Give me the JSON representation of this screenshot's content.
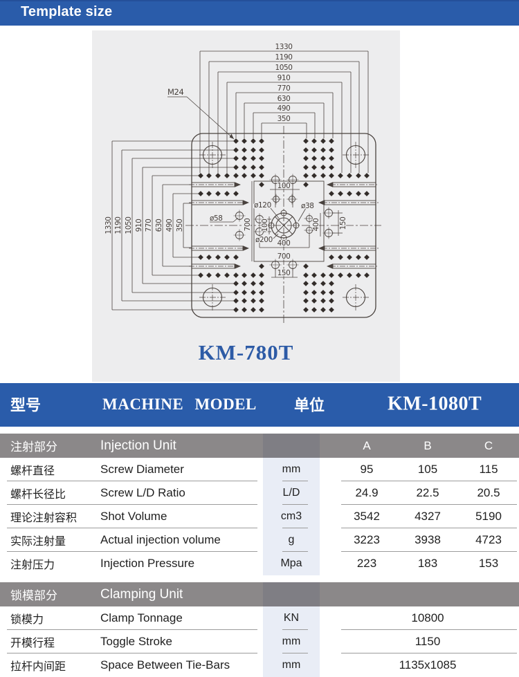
{
  "header": {
    "title": "Template size"
  },
  "diagram": {
    "model_label": "KM-780T",
    "thread_label": "M24",
    "top_dims": [
      "1330",
      "1190",
      "1050",
      "910",
      "770",
      "630",
      "490",
      "350"
    ],
    "left_dims": [
      "1330",
      "1190",
      "1050",
      "910",
      "770",
      "630",
      "490",
      "350"
    ],
    "labels": {
      "top_100": "100",
      "dia_120": "ø120",
      "dia_38": "ø38",
      "dia_58": "ø58",
      "dia_200": "ø200",
      "left_700": "700",
      "left_100": "100",
      "right_400": "400",
      "right_150": "150",
      "mid_400": "400",
      "mid_700": "700",
      "bottom_150": "150"
    }
  },
  "table": {
    "header": {
      "model_zh": "型号",
      "model_en": "MACHINE MODEL",
      "unit_zh": "单位",
      "model_value": "KM-1080T"
    },
    "sections": [
      {
        "title_zh": "注射部分",
        "title_en": "Injection Unit",
        "columns": [
          "A",
          "B",
          "C"
        ],
        "rows": [
          {
            "zh": "螺杆直径",
            "en": "Screw Diameter",
            "unit": "mm",
            "values": [
              "95",
              "105",
              "115"
            ]
          },
          {
            "zh": "螺杆长径比",
            "en": "Screw L/D Ratio",
            "unit": "L/D",
            "values": [
              "24.9",
              "22.5",
              "20.5"
            ]
          },
          {
            "zh": "理论注射容积",
            "en": "Shot Volume",
            "unit": "cm3",
            "values": [
              "3542",
              "4327",
              "5190"
            ]
          },
          {
            "zh": "实际注射量",
            "en": "Actual injection volume",
            "unit": "g",
            "values": [
              "3223",
              "3938",
              "4723"
            ]
          },
          {
            "zh": "注射压力",
            "en": "Injection Pressure",
            "unit": "Mpa",
            "values": [
              "223",
              "183",
              "153"
            ]
          }
        ]
      },
      {
        "title_zh": "锁模部分",
        "title_en": "Clamping Unit",
        "rows": [
          {
            "zh": "锁模力",
            "en": "Clamp Tonnage",
            "unit": "KN",
            "values": [
              "10800"
            ]
          },
          {
            "zh": "开模行程",
            "en": "Toggle Stroke",
            "unit": "mm",
            "values": [
              "1150"
            ]
          },
          {
            "zh": "拉杆内间距",
            "en": "Space Between Tie-Bars",
            "unit": "mm",
            "values": [
              "1135x1085"
            ]
          }
        ]
      }
    ]
  },
  "colors": {
    "accent_blue": "#2a5caa",
    "section_gray": "#8b8889",
    "unit_header_gray": "#7f7e84",
    "unit_column_bg": "#e9edf6",
    "panel_bg": "#ededee",
    "drawing_line": "#49423e",
    "model_text_blue": "#2d5ba6"
  }
}
